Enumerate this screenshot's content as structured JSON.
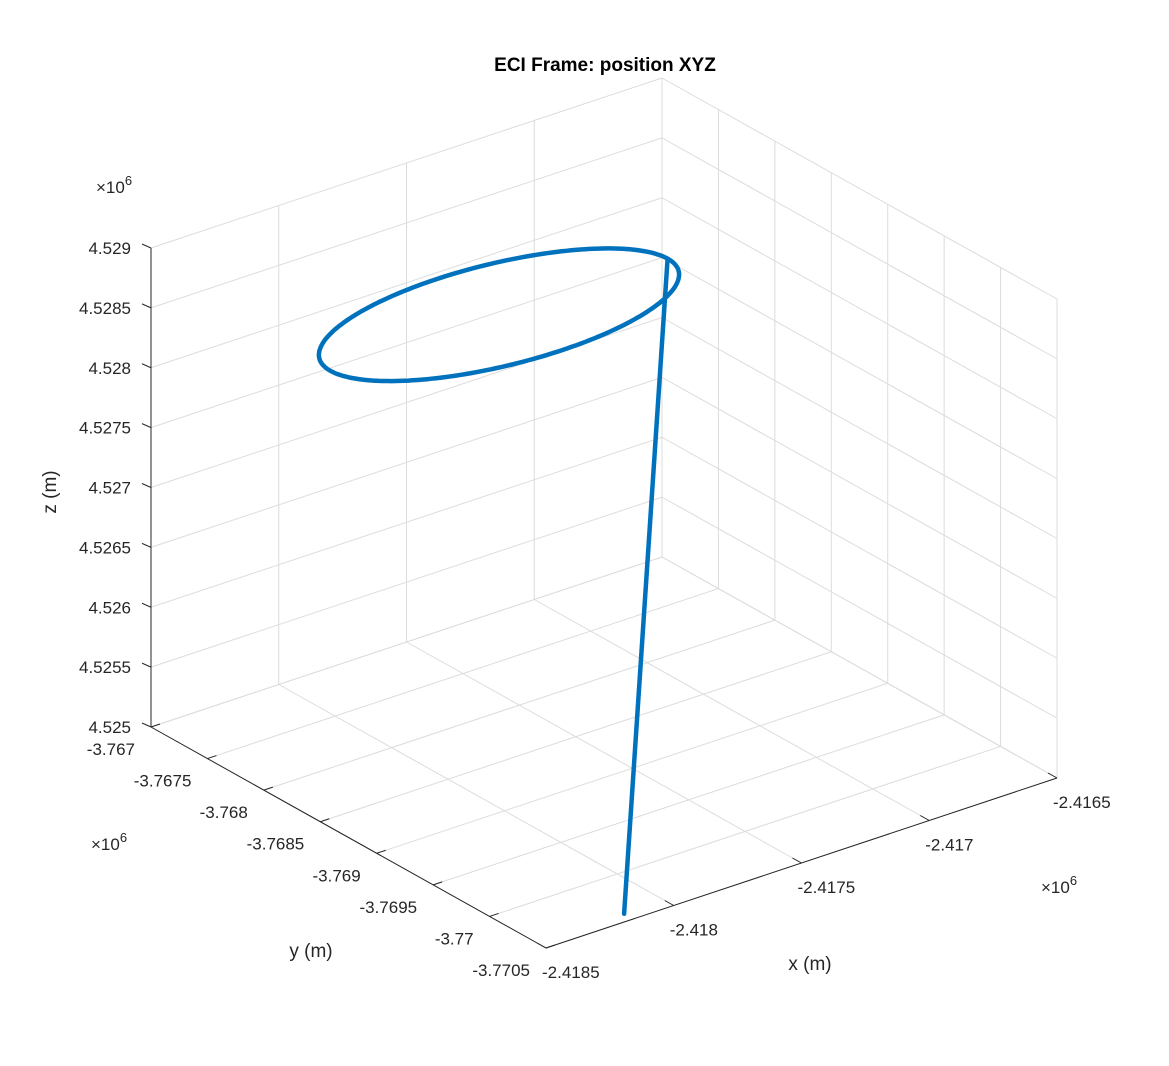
{
  "chart_data": {
    "type": "line3d",
    "title": "ECI Frame: position XYZ",
    "xlabel": "x (m)",
    "ylabel": "y (m)",
    "zlabel": "z (m)",
    "grid": true,
    "x_exponent": "×10^6",
    "y_exponent": "×10^6",
    "z_exponent": "×10^6",
    "xlim": [
      -2.4185,
      -2.4165
    ],
    "ylim": [
      -3.7705,
      -3.767
    ],
    "zlim": [
      4.525,
      4.529
    ],
    "x_ticks": [
      -2.4185,
      -2.418,
      -2.4175,
      -2.417,
      -2.4165
    ],
    "x_tick_labels": [
      "-2.4185",
      "-2.418",
      "-2.4175",
      "-2.417",
      "-2.4165"
    ],
    "y_ticks": [
      -3.7705,
      -3.77,
      -3.7695,
      -3.769,
      -3.7685,
      -3.768,
      -3.7675,
      -3.767
    ],
    "y_tick_labels": [
      "-3.7705",
      "-3.77",
      "-3.7695",
      "-3.769",
      "-3.7685",
      "-3.768",
      "-3.7675",
      "-3.767"
    ],
    "z_ticks": [
      4.525,
      4.5255,
      4.526,
      4.5265,
      4.527,
      4.5275,
      4.528,
      4.5285,
      4.529
    ],
    "z_tick_labels": [
      "4.525",
      "4.5255",
      "4.526",
      "4.5265",
      "4.527",
      "4.5275",
      "4.528",
      "4.5285",
      "4.529"
    ],
    "series": [
      {
        "color": "#0072BD",
        "path": {
          "start": {
            "x": -2.41819,
            "y": -3.77049,
            "z": 4.52506
          },
          "loop_center": {
            "x": -2.41807,
            "y": -3.76911,
            "z": 4.52925
          },
          "loop_semi_axes": {
            "x": 0.00066,
            "y": 0.00056
          },
          "loop_start_angle_deg": 0
        }
      }
    ]
  }
}
